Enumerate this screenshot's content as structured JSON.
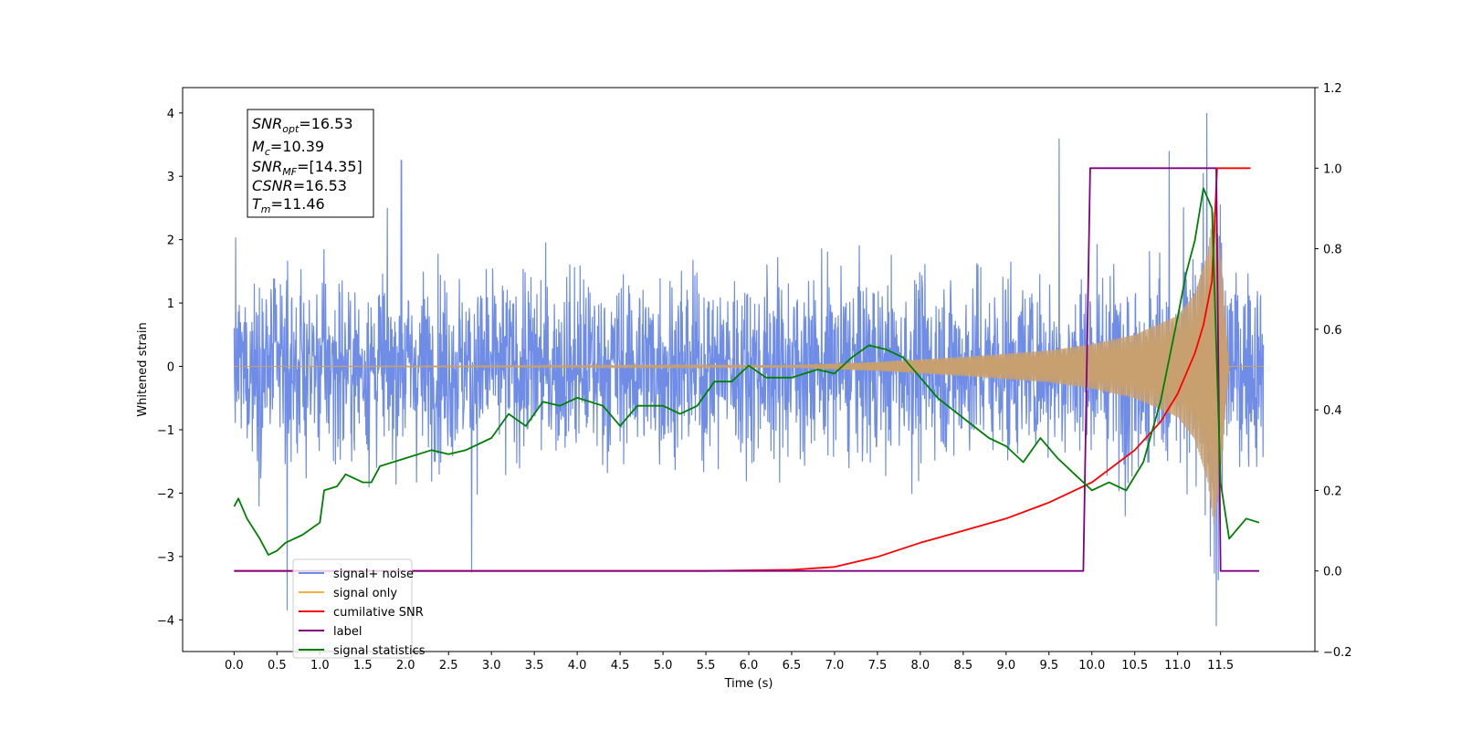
{
  "chart_data": {
    "type": "line",
    "title": "",
    "xlabel": "Time (s)",
    "ylabel": "Whitened strain",
    "ylabel_right": "",
    "xlim": [
      -0.6,
      12.6
    ],
    "ylim": [
      -4.5,
      4.4
    ],
    "ylim_right": [
      -0.2,
      1.2
    ],
    "x_ticks": [
      "0.0",
      "0.5",
      "1.0",
      "1.5",
      "2.0",
      "2.5",
      "3.0",
      "3.5",
      "4.0",
      "4.5",
      "5.0",
      "5.5",
      "6.0",
      "6.5",
      "7.0",
      "7.5",
      "8.0",
      "8.5",
      "9.0",
      "9.5",
      "10.0",
      "10.5",
      "11.0",
      "11.5"
    ],
    "y_ticks": [
      "4",
      "3",
      "2",
      "1",
      "0",
      "−1",
      "−2",
      "−3",
      "−4"
    ],
    "y_ticks_right": [
      "1.2",
      "1.0",
      "0.8",
      "0.6",
      "0.4",
      "0.2",
      "0.0",
      "−0.2"
    ],
    "annotation": {
      "snr_opt": {
        "base": "SNR",
        "sub": "opt",
        "value": "=16.53"
      },
      "mc": {
        "base": "M",
        "sub": "c",
        "value": "=10.39"
      },
      "snr_mf": {
        "base": "SNR",
        "sub": "MF",
        "value": "=[14.35]"
      },
      "csnr": {
        "base": "CSNR",
        "value": "=16.53"
      },
      "tm": {
        "base": "T",
        "sub": "m",
        "value": "=11.46"
      }
    },
    "legend": {
      "placement": "lower-left",
      "entries": [
        {
          "label": "signal+ noise",
          "color": "#6f8de6"
        },
        {
          "label": "signal only",
          "color": "#f5b041"
        },
        {
          "label": "cumilative SNR",
          "color": "#ff0000"
        },
        {
          "label": "label",
          "color": "#800080"
        },
        {
          "label": "signal statistics",
          "color": "#008000"
        }
      ]
    },
    "series": [
      {
        "name": "signal+ noise",
        "axis": "left",
        "color": "#6f8de6",
        "x_range": [
          0.0,
          12.0
        ],
        "envelope_typical": 1.8,
        "peak_extremes": [
          {
            "x": 11.34,
            "y": 4.0
          },
          {
            "x": 11.45,
            "y": -4.1
          },
          {
            "x": 9.62,
            "y": 3.6
          },
          {
            "x": 10.9,
            "y": 3.4
          },
          {
            "x": 0.62,
            "y": -3.85
          },
          {
            "x": 2.77,
            "y": -3.25
          },
          {
            "x": 1.95,
            "y": 3.25
          }
        ]
      },
      {
        "name": "signal only",
        "axis": "left",
        "color": "#c8a070",
        "x_range": [
          0.0,
          12.0
        ],
        "amplitude": [
          [
            0,
            0.0
          ],
          [
            6.5,
            0.02
          ],
          [
            7.5,
            0.07
          ],
          [
            8.5,
            0.15
          ],
          [
            9.5,
            0.25
          ],
          [
            10.0,
            0.35
          ],
          [
            10.5,
            0.5
          ],
          [
            11.0,
            0.8
          ],
          [
            11.2,
            1.15
          ],
          [
            11.35,
            1.8
          ],
          [
            11.42,
            2.5
          ],
          [
            11.5,
            1.8
          ],
          [
            11.6,
            0.0
          ],
          [
            12.0,
            0.0
          ]
        ]
      },
      {
        "name": "cumilative SNR",
        "axis": "right",
        "color": "#ff0000",
        "x": [
          5.5,
          6.5,
          7.0,
          7.5,
          8.0,
          8.5,
          9.0,
          9.5,
          10.0,
          10.5,
          10.8,
          11.0,
          11.2,
          11.3,
          11.4,
          11.46,
          11.47,
          11.5,
          11.6,
          11.8,
          11.85
        ],
        "values": [
          0.0,
          0.003,
          0.01,
          0.035,
          0.07,
          0.1,
          0.13,
          0.17,
          0.22,
          0.3,
          0.37,
          0.44,
          0.54,
          0.61,
          0.72,
          1.0,
          1.0,
          1.0,
          1.0,
          1.0,
          1.0
        ]
      },
      {
        "name": "label",
        "axis": "right",
        "color": "#800080",
        "x": [
          0.0,
          9.9,
          9.98,
          11.43,
          11.45,
          11.5,
          11.95
        ],
        "values": [
          0.0,
          0.0,
          1.0,
          1.0,
          1.0,
          0.0,
          0.0
        ]
      },
      {
        "name": "signal statistics",
        "axis": "right",
        "color": "#008000",
        "x": [
          0.0,
          0.05,
          0.15,
          0.3,
          0.4,
          0.5,
          0.6,
          0.7,
          0.8,
          1.0,
          1.05,
          1.2,
          1.3,
          1.5,
          1.6,
          1.7,
          2.0,
          2.3,
          2.5,
          2.7,
          3.0,
          3.2,
          3.4,
          3.6,
          3.8,
          4.0,
          4.3,
          4.5,
          4.7,
          5.0,
          5.2,
          5.4,
          5.6,
          5.8,
          6.0,
          6.2,
          6.5,
          6.8,
          7.0,
          7.2,
          7.4,
          7.6,
          7.8,
          8.0,
          8.2,
          8.5,
          8.8,
          9.0,
          9.2,
          9.4,
          9.6,
          9.8,
          10.0,
          10.2,
          10.4,
          10.6,
          10.8,
          11.0,
          11.1,
          11.2,
          11.3,
          11.4,
          11.5,
          11.6,
          11.8,
          11.95
        ],
        "values": [
          0.16,
          0.18,
          0.13,
          0.08,
          0.04,
          0.05,
          0.07,
          0.08,
          0.09,
          0.12,
          0.2,
          0.21,
          0.24,
          0.22,
          0.22,
          0.26,
          0.28,
          0.3,
          0.29,
          0.3,
          0.33,
          0.39,
          0.36,
          0.42,
          0.41,
          0.43,
          0.41,
          0.36,
          0.41,
          0.41,
          0.39,
          0.41,
          0.47,
          0.47,
          0.51,
          0.48,
          0.48,
          0.5,
          0.49,
          0.53,
          0.56,
          0.55,
          0.53,
          0.48,
          0.43,
          0.38,
          0.33,
          0.31,
          0.27,
          0.33,
          0.28,
          0.24,
          0.2,
          0.22,
          0.2,
          0.27,
          0.42,
          0.63,
          0.74,
          0.82,
          0.95,
          0.9,
          0.22,
          0.08,
          0.13,
          0.12
        ]
      }
    ]
  }
}
